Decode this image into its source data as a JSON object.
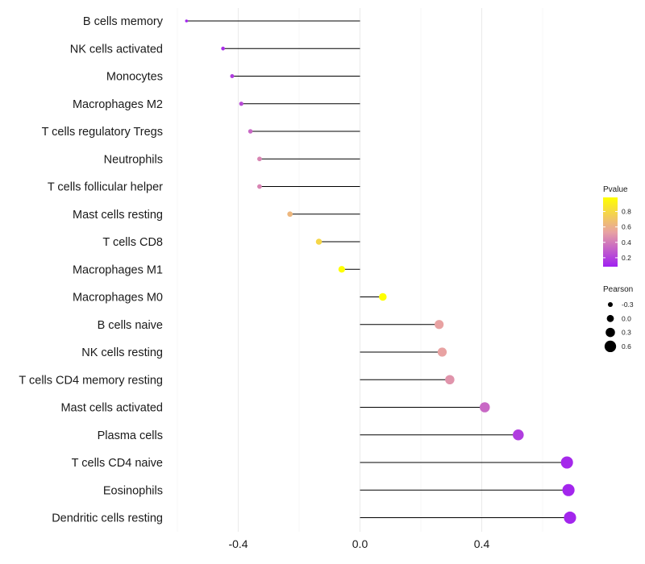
{
  "chart_data": {
    "type": "lollipop",
    "categories": [
      "B cells memory",
      "NK cells activated",
      "Monocytes",
      "Macrophages M2",
      "T cells regulatory  Tregs ",
      "Neutrophils",
      "T cells follicular helper",
      "Mast cells resting",
      "T cells CD8",
      "Macrophages M1",
      "Macrophages M0",
      "B cells naive",
      "NK cells resting",
      "T cells CD4 memory resting",
      "Mast cells activated",
      "Plasma cells",
      "T cells CD4 naive",
      "Eosinophils",
      "Dendritic cells resting"
    ],
    "values": [
      -0.57,
      -0.45,
      -0.42,
      -0.39,
      -0.36,
      -0.33,
      -0.33,
      -0.23,
      -0.135,
      -0.06,
      0.075,
      0.26,
      0.27,
      0.295,
      0.41,
      0.52,
      0.68,
      0.685,
      0.69
    ],
    "pvalues": [
      0.01,
      0.05,
      0.1,
      0.15,
      0.25,
      0.35,
      0.35,
      0.55,
      0.7,
      0.9,
      0.9,
      0.45,
      0.45,
      0.4,
      0.25,
      0.1,
      0.03,
      0.02,
      0.02
    ],
    "xlim": [
      -0.6,
      0.75
    ],
    "x_ticks": [
      -0.4,
      0.0,
      0.4
    ],
    "x_tick_labels": [
      "-0.4",
      "0.0",
      "0.4"
    ],
    "title": "",
    "xlabel": "",
    "ylabel": "",
    "grid": true,
    "legend": {
      "color_title": "Pvalue",
      "color_ticks": [
        "0.8",
        "0.6",
        "0.4",
        "0.2"
      ],
      "color_tick_values": [
        0.8,
        0.6,
        0.4,
        0.2
      ],
      "color_low": "#a020f0",
      "color_mid": "#e8a2a2",
      "color_high": "#ffff00",
      "size_title": "Pearson",
      "size_labels": [
        "-0.3",
        "0.0",
        "0.3",
        "0.6"
      ],
      "size_values": [
        -0.3,
        0.0,
        0.3,
        0.6
      ],
      "placement": "right"
    }
  }
}
